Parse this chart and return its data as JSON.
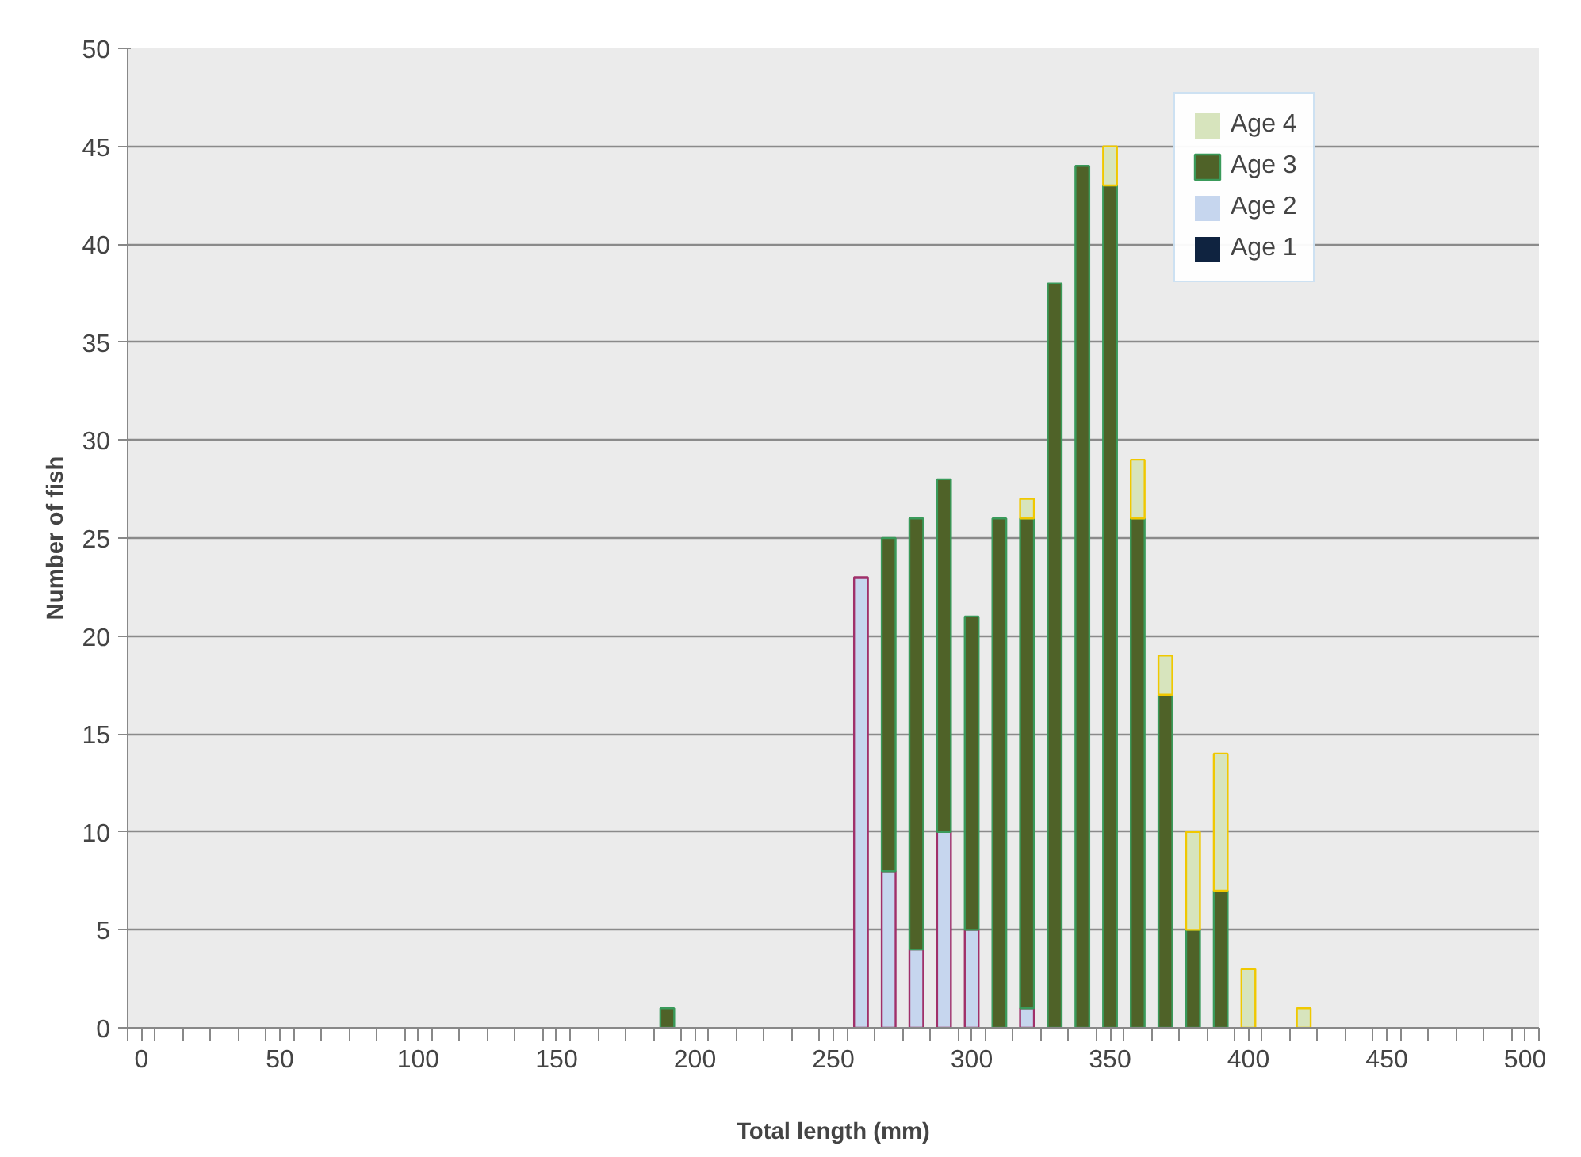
{
  "chart_data": {
    "type": "bar",
    "stacked": true,
    "xlabel": "Total length (mm)",
    "ylabel": "Number of fish",
    "x": [
      190,
      260,
      270,
      280,
      290,
      300,
      310,
      320,
      330,
      340,
      350,
      360,
      370,
      380,
      390,
      400,
      420
    ],
    "series": [
      {
        "name": "Age 1",
        "color": "#0f2340",
        "values": [
          0,
          0,
          0,
          0,
          0,
          0,
          0,
          0,
          0,
          0,
          0,
          0,
          0,
          0,
          0,
          0,
          0
        ]
      },
      {
        "name": "Age 2",
        "color": "#c6d6ee",
        "values": [
          0,
          23,
          8,
          4,
          10,
          5,
          0,
          1,
          0,
          0,
          0,
          0,
          0,
          0,
          0,
          0,
          0
        ]
      },
      {
        "name": "Age 3",
        "color": "#4f6228",
        "values": [
          1,
          0,
          17,
          22,
          18,
          16,
          26,
          25,
          38,
          44,
          43,
          26,
          17,
          5,
          7,
          0,
          0
        ]
      },
      {
        "name": "Age 4",
        "color": "#d7e4bd",
        "values": [
          0,
          0,
          0,
          0,
          0,
          0,
          0,
          1,
          0,
          0,
          2,
          3,
          2,
          5,
          7,
          3,
          1
        ]
      }
    ],
    "ylim": [
      0,
      50
    ],
    "yticks": [
      0,
      5,
      10,
      15,
      20,
      25,
      30,
      35,
      40,
      45,
      50
    ],
    "xlim": [
      -5,
      505
    ],
    "xticks": [
      0,
      50,
      100,
      150,
      200,
      250,
      300,
      350,
      400,
      450,
      500,
      {
        "value": -5,
        "label": null
      },
      {
        "value": 5,
        "label": null
      },
      {
        "value": 15,
        "label": null
      },
      {
        "value": 25,
        "label": null
      },
      {
        "value": 35,
        "label": null
      },
      {
        "value": 45,
        "label": null
      },
      {
        "value": 55,
        "label": null
      },
      {
        "value": 65,
        "label": null
      },
      {
        "value": 75,
        "label": null
      },
      {
        "value": 85,
        "label": null
      },
      {
        "value": 95,
        "label": null
      },
      {
        "value": 105,
        "label": null
      },
      {
        "value": 115,
        "label": null
      },
      {
        "value": 125,
        "label": null
      },
      {
        "value": 135,
        "label": null
      },
      {
        "value": 145,
        "label": null
      },
      {
        "value": 155,
        "label": null
      },
      {
        "value": 165,
        "label": null
      },
      {
        "value": 175,
        "label": null
      },
      {
        "value": 185,
        "label": null
      },
      {
        "value": 195,
        "label": null
      },
      {
        "value": 205,
        "label": null
      },
      {
        "value": 215,
        "label": null
      },
      {
        "value": 225,
        "label": null
      },
      {
        "value": 235,
        "label": null
      },
      {
        "value": 245,
        "label": null
      },
      {
        "value": 255,
        "label": null
      },
      {
        "value": 265,
        "label": null
      },
      {
        "value": 275,
        "label": null
      },
      {
        "value": 285,
        "label": null
      },
      {
        "value": 295,
        "label": null
      },
      {
        "value": 305,
        "label": null
      },
      {
        "value": 315,
        "label": null
      },
      {
        "value": 325,
        "label": null
      },
      {
        "value": 335,
        "label": null
      },
      {
        "value": 345,
        "label": null
      },
      {
        "value": 355,
        "label": null
      },
      {
        "value": 365,
        "label": null
      },
      {
        "value": 375,
        "label": null
      },
      {
        "value": 385,
        "label": null
      },
      {
        "value": 395,
        "label": null
      },
      {
        "value": 405,
        "label": null
      },
      {
        "value": 415,
        "label": null
      },
      {
        "value": 425,
        "label": null
      },
      {
        "value": 435,
        "label": null
      },
      {
        "value": 445,
        "label": null
      },
      {
        "value": 455,
        "label": null
      },
      {
        "value": 465,
        "label": null
      },
      {
        "value": 475,
        "label": null
      },
      {
        "value": 485,
        "label": null
      },
      {
        "value": 495,
        "label": null
      },
      {
        "value": 505,
        "label": null
      }
    ],
    "grid": "y",
    "legend": "top right"
  }
}
